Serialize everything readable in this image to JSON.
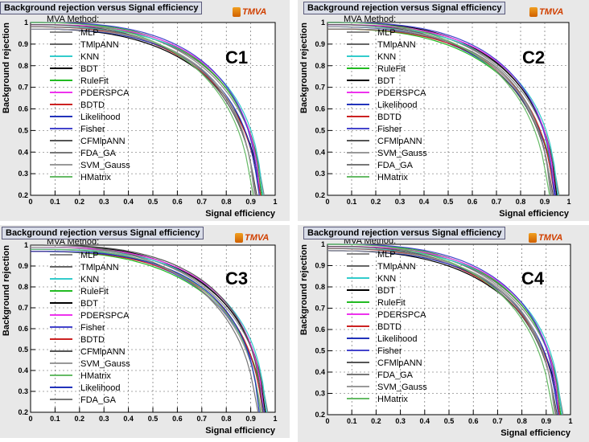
{
  "logo_text": "TMVA",
  "chart_data": [
    {
      "type": "line",
      "panel_label": "C1",
      "title": "Background rejection versus Signal efficiency",
      "xlabel": "Signal efficiency",
      "ylabel": "Background rejection",
      "xlim": [
        0,
        1
      ],
      "ylim": [
        0.2,
        1
      ],
      "x_ticks": [
        "0",
        "0.1",
        "0.2",
        "0.3",
        "0.4",
        "0.5",
        "0.6",
        "0.7",
        "0.8",
        "0.9",
        "1"
      ],
      "y_ticks": [
        "0.2",
        "0.3",
        "0.4",
        "0.5",
        "0.6",
        "0.7",
        "0.8",
        "0.9",
        "1"
      ],
      "grid": true,
      "legend_title": "MVA Method:",
      "legend_position": "top-left",
      "series": [
        {
          "name": "MLP",
          "color": "#888888",
          "endpoint": 0.955
        },
        {
          "name": "TMlpANN",
          "color": "#666666",
          "endpoint": 0.95
        },
        {
          "name": "KNN",
          "color": "#33cccc",
          "endpoint": 0.95
        },
        {
          "name": "BDT",
          "color": "#000000",
          "endpoint": 0.945
        },
        {
          "name": "RuleFit",
          "color": "#22bb22",
          "endpoint": 0.945
        },
        {
          "name": "PDERSPCA",
          "color": "#ee33ee",
          "endpoint": 0.94
        },
        {
          "name": "BDTD",
          "color": "#cc2222",
          "endpoint": 0.94
        },
        {
          "name": "Likelihood",
          "color": "#2233bb",
          "endpoint": 0.935
        },
        {
          "name": "Fisher",
          "color": "#4444cc",
          "endpoint": 0.935
        },
        {
          "name": "CFMlpANN",
          "color": "#555555",
          "endpoint": 0.925
        },
        {
          "name": "FDA_GA",
          "color": "#777777",
          "endpoint": 0.92
        },
        {
          "name": "SVM_Gauss",
          "color": "#999999",
          "endpoint": 0.915
        },
        {
          "name": "HMatrix",
          "color": "#66bb66",
          "endpoint": 0.91
        }
      ]
    },
    {
      "type": "line",
      "panel_label": "C2",
      "title": "Background rejection versus Signal efficiency",
      "xlabel": "Signal efficiency",
      "ylabel": "Background rejection",
      "xlim": [
        0,
        1
      ],
      "ylim": [
        0.2,
        1
      ],
      "x_ticks": [
        "0",
        "0.1",
        "0.2",
        "0.3",
        "0.4",
        "0.5",
        "0.6",
        "0.7",
        "0.8",
        "0.9",
        "1"
      ],
      "y_ticks": [
        "0.2",
        "0.3",
        "0.4",
        "0.5",
        "0.6",
        "0.7",
        "0.8",
        "0.9",
        "1"
      ],
      "grid": true,
      "legend_title": "MVA Method:",
      "legend_position": "top-left",
      "series": [
        {
          "name": "MLP",
          "color": "#888888",
          "endpoint": 0.96
        },
        {
          "name": "TMlpANN",
          "color": "#666666",
          "endpoint": 0.955
        },
        {
          "name": "KNN",
          "color": "#33cccc",
          "endpoint": 0.955
        },
        {
          "name": "RuleFit",
          "color": "#22bb22",
          "endpoint": 0.95
        },
        {
          "name": "BDT",
          "color": "#000000",
          "endpoint": 0.95
        },
        {
          "name": "PDERSPCA",
          "color": "#ee33ee",
          "endpoint": 0.945
        },
        {
          "name": "Likelihood",
          "color": "#2233bb",
          "endpoint": 0.945
        },
        {
          "name": "BDTD",
          "color": "#cc2222",
          "endpoint": 0.94
        },
        {
          "name": "Fisher",
          "color": "#4444cc",
          "endpoint": 0.94
        },
        {
          "name": "CFMlpANN",
          "color": "#555555",
          "endpoint": 0.935
        },
        {
          "name": "SVM_Gauss",
          "color": "#999999",
          "endpoint": 0.93
        },
        {
          "name": "FDA_GA",
          "color": "#777777",
          "endpoint": 0.925
        },
        {
          "name": "HMatrix",
          "color": "#66bb66",
          "endpoint": 0.92
        }
      ]
    },
    {
      "type": "line",
      "panel_label": "C3",
      "title": "Background rejection versus Signal efficiency",
      "xlabel": "Signal efficiency",
      "ylabel": "Background rejection",
      "xlim": [
        0,
        1
      ],
      "ylim": [
        0.2,
        1
      ],
      "x_ticks": [
        "0",
        "0.1",
        "0.2",
        "0.3",
        "0.4",
        "0.5",
        "0.6",
        "0.7",
        "0.8",
        "0.9",
        "1"
      ],
      "y_ticks": [
        "0.2",
        "0.3",
        "0.4",
        "0.5",
        "0.6",
        "0.7",
        "0.8",
        "0.9",
        "1"
      ],
      "grid": true,
      "legend_title": "MVA Method:",
      "legend_position": "top-left",
      "series": [
        {
          "name": "MLP",
          "color": "#888888",
          "endpoint": 0.97
        },
        {
          "name": "TMlpANN",
          "color": "#666666",
          "endpoint": 0.965
        },
        {
          "name": "KNN",
          "color": "#33cccc",
          "endpoint": 0.965
        },
        {
          "name": "RuleFit",
          "color": "#22bb22",
          "endpoint": 0.96
        },
        {
          "name": "BDT",
          "color": "#000000",
          "endpoint": 0.96
        },
        {
          "name": "PDERSPCA",
          "color": "#ee33ee",
          "endpoint": 0.955
        },
        {
          "name": "Fisher",
          "color": "#4444cc",
          "endpoint": 0.955
        },
        {
          "name": "BDTD",
          "color": "#cc2222",
          "endpoint": 0.95
        },
        {
          "name": "CFMlpANN",
          "color": "#555555",
          "endpoint": 0.95
        },
        {
          "name": "SVM_Gauss",
          "color": "#999999",
          "endpoint": 0.945
        },
        {
          "name": "HMatrix",
          "color": "#66bb66",
          "endpoint": 0.94
        },
        {
          "name": "Likelihood",
          "color": "#2233bb",
          "endpoint": 0.935
        },
        {
          "name": "FDA_GA",
          "color": "#777777",
          "endpoint": 0.93
        }
      ]
    },
    {
      "type": "line",
      "panel_label": "C4",
      "title": "Background rejection versus Signal efficiency",
      "xlabel": "Signal efficiency",
      "ylabel": "Background rejection",
      "xlim": [
        0,
        1
      ],
      "ylim": [
        0.2,
        1
      ],
      "x_ticks": [
        "0",
        "0.1",
        "0.2",
        "0.3",
        "0.4",
        "0.5",
        "0.6",
        "0.7",
        "0.8",
        "0.9",
        "1"
      ],
      "y_ticks": [
        "0.2",
        "0.3",
        "0.4",
        "0.5",
        "0.6",
        "0.7",
        "0.8",
        "0.9",
        "1"
      ],
      "grid": true,
      "legend_title": "MVA Method:",
      "legend_position": "top-left",
      "series": [
        {
          "name": "MLP",
          "color": "#888888",
          "endpoint": 0.97
        },
        {
          "name": "TMlpANN",
          "color": "#666666",
          "endpoint": 0.965
        },
        {
          "name": "KNN",
          "color": "#33cccc",
          "endpoint": 0.965
        },
        {
          "name": "BDT",
          "color": "#000000",
          "endpoint": 0.96
        },
        {
          "name": "RuleFit",
          "color": "#22bb22",
          "endpoint": 0.96
        },
        {
          "name": "PDERSPCA",
          "color": "#ee33ee",
          "endpoint": 0.955
        },
        {
          "name": "BDTD",
          "color": "#cc2222",
          "endpoint": 0.955
        },
        {
          "name": "Likelihood",
          "color": "#2233bb",
          "endpoint": 0.95
        },
        {
          "name": "Fisher",
          "color": "#4444cc",
          "endpoint": 0.95
        },
        {
          "name": "CFMlpANN",
          "color": "#555555",
          "endpoint": 0.945
        },
        {
          "name": "FDA_GA",
          "color": "#777777",
          "endpoint": 0.94
        },
        {
          "name": "SVM_Gauss",
          "color": "#999999",
          "endpoint": 0.935
        },
        {
          "name": "HMatrix",
          "color": "#66bb66",
          "endpoint": 0.93
        }
      ]
    }
  ]
}
